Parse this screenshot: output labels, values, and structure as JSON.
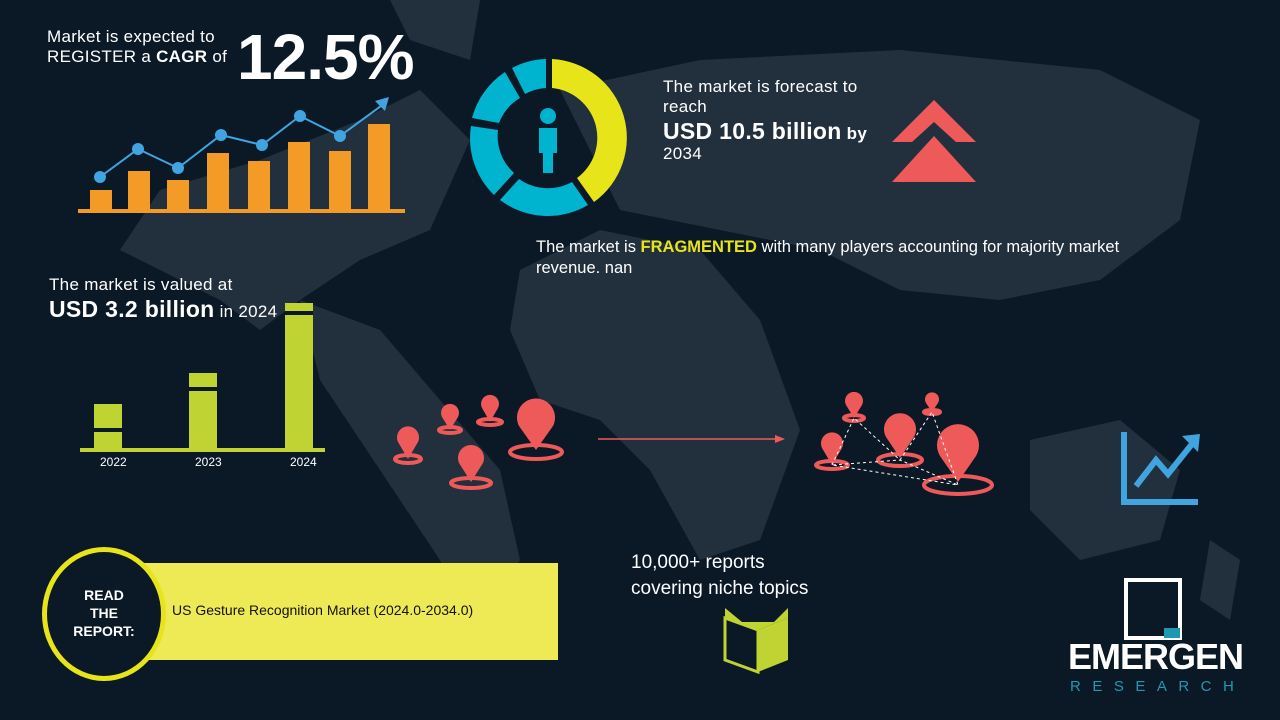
{
  "cagr": {
    "line1": "Market is expected to",
    "line2_pre": "REGISTER a ",
    "line2_bold": "CAGR",
    "line2_post": " of",
    "value": "12.5%"
  },
  "forecast": {
    "line1": "The market is forecast to",
    "line2": "reach",
    "value": "USD 10.5 billion",
    "by": "by",
    "year": "2034"
  },
  "fragmented": {
    "pre": "The market is ",
    "highlight": "FRAGMENTED",
    "post": " with many players accounting for majority market",
    "line2": "revenue. nan"
  },
  "valued": {
    "line1": "The market is valued at",
    "value": "USD 3.2 billion",
    "suffix": "in 2024"
  },
  "value_bars": {
    "categories": [
      "2022",
      "2023",
      "2024"
    ]
  },
  "read_report": {
    "label_lines": [
      "READ",
      "THE",
      "REPORT:"
    ],
    "title": "US Gesture Recognition Market (2024.0-2034.0)"
  },
  "reports": {
    "line1": "10,000+ reports",
    "line2": "covering niche topics"
  },
  "logo": {
    "name": "EMERGEN",
    "sub": "RESEARCH"
  },
  "colors": {
    "background": "#0b1825",
    "map": "#22303d",
    "orange": "#f49a27",
    "blue": "#3fa4e0",
    "yellow": "#e8e41a",
    "cyan": "#00b3cf",
    "lime": "#bfd433",
    "red": "#ee5a5a",
    "banner": "#eeea55"
  },
  "icons": [
    "growth-chart-icon",
    "donut-person-icon",
    "double-chevron-up-icon",
    "location-pin-icon",
    "trend-up-icon",
    "open-book-icon"
  ]
}
